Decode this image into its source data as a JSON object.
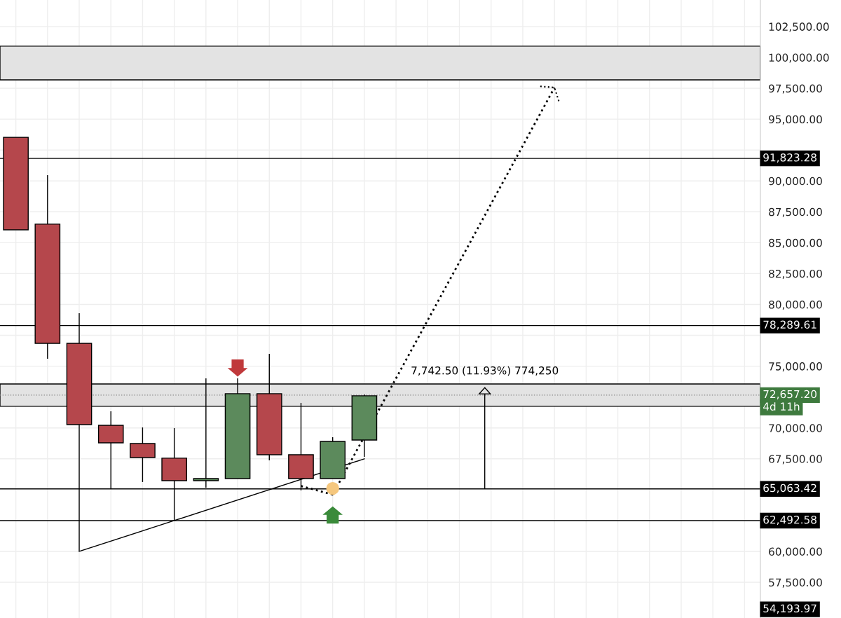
{
  "chart_data": {
    "type": "candlestick",
    "categories": [
      null,
      null,
      null,
      null,
      null,
      null,
      null,
      null,
      null,
      null,
      null,
      null,
      null,
      null,
      null,
      null,
      null,
      null,
      null,
      null,
      null,
      null,
      null,
      null
    ],
    "ohlc": [
      [
        93530,
        93530,
        86040,
        86040
      ],
      [
        86500,
        90470,
        75600,
        76850
      ],
      [
        76850,
        79290,
        60000,
        70270
      ],
      [
        70210,
        71350,
        65050,
        68790
      ],
      [
        68740,
        70040,
        65620,
        67600
      ],
      [
        67550,
        69990,
        62500,
        65730
      ],
      [
        65730,
        74010,
        65160,
        65900
      ],
      [
        65900,
        74010,
        65900,
        72770
      ],
      [
        72770,
        76000,
        67380,
        67830
      ],
      [
        67830,
        72030,
        64940,
        65900
      ],
      [
        65900,
        69250,
        65900,
        68910
      ],
      [
        69020,
        72710,
        67660,
        72600
      ],
      null,
      null,
      null,
      null,
      null,
      null,
      null,
      null,
      null,
      null,
      null,
      null
    ],
    "colors": [
      "#b5474c",
      "#b5474c",
      "#b5474c",
      "#b5474c",
      "#b5474c",
      "#b5474c",
      "#5c8a5c",
      "#5c8a5c",
      "#b5474c",
      "#b5474c",
      "#5c8a5c",
      "#5c8a5c",
      null,
      null,
      null,
      null,
      null,
      null,
      null,
      null,
      null,
      null,
      null,
      null
    ],
    "series": [
      {
        "type": "line",
        "color": "#000000",
        "line_style": "solid",
        "values": [
          null,
          null,
          60000,
          null,
          null,
          62500,
          null,
          null,
          null,
          null,
          null,
          67500,
          null,
          null,
          null,
          null,
          null,
          null,
          null,
          null,
          null,
          null,
          null,
          null
        ]
      },
      {
        "type": "line",
        "color": "#000000",
        "line_style": "dotted",
        "values": [
          null,
          null,
          null,
          null,
          null,
          null,
          null,
          null,
          null,
          65300,
          64600,
          null,
          null,
          null,
          null,
          null,
          null,
          97560,
          null,
          null,
          null,
          null,
          null,
          null
        ]
      },
      {
        "type": "scatter",
        "color": "#f5c77e",
        "marker": "circle",
        "values": [
          null,
          null,
          null,
          null,
          null,
          null,
          null,
          null,
          null,
          null,
          65100,
          null,
          null,
          null,
          null,
          null,
          null,
          null,
          null,
          null,
          null,
          null,
          null,
          null
        ]
      }
    ],
    "ylim": [
      54610,
      104650
    ],
    "yticks": [
      {
        "value": 57500,
        "label": "57,500.00"
      },
      {
        "value": 60000,
        "label": "60,000.00"
      },
      {
        "value": 67500,
        "label": "67,500.00"
      },
      {
        "value": 70000,
        "label": "70,000.00"
      },
      {
        "value": 75000,
        "label": "75,000.00"
      },
      {
        "value": 77500,
        "label": null
      },
      {
        "value": 80000,
        "label": "80,000.00"
      },
      {
        "value": 82500,
        "label": "82,500.00"
      },
      {
        "value": 85000,
        "label": "85,000.00"
      },
      {
        "value": 87500,
        "label": "87,500.00"
      },
      {
        "value": 90000,
        "label": "90,000.00"
      },
      {
        "value": 92500,
        "label": null
      },
      {
        "value": 95000,
        "label": "95,000.00"
      },
      {
        "value": 97500,
        "label": "97,500.00"
      },
      {
        "value": 100000,
        "label": "100,000.00"
      },
      {
        "value": 102500,
        "label": "102,500.00"
      }
    ],
    "tick_labels": "y",
    "grid": true,
    "ref_lines": [
      {
        "axis": "y",
        "value": 91823.28,
        "label": "91,823.28",
        "color": "#000000",
        "line_style": "solid"
      },
      {
        "axis": "y",
        "value": 78289.61,
        "label": "78,289.61",
        "color": "#000000",
        "line_style": "solid"
      },
      {
        "axis": "y",
        "value": 65063.42,
        "label": "65,063.42",
        "color": "#000000",
        "line_style": "solid"
      },
      {
        "axis": "y",
        "value": 62492.58,
        "label": "62,492.58",
        "color": "#000000",
        "line_style": "solid"
      },
      {
        "axis": "y",
        "value": 72657.2,
        "label": "72,657.20",
        "color": "#888888",
        "line_style": "dotted"
      }
    ],
    "bands": [
      {
        "axis": "y",
        "from": 98180,
        "to": 100910,
        "color": "#e3e3e3"
      },
      {
        "axis": "y",
        "from": 71750,
        "to": 73560,
        "color": "#e3e3e3"
      }
    ],
    "annotations": [
      "7,742.50 (11.93%) 774,250",
      "4d 11h",
      "54,193.97"
    ]
  }
}
